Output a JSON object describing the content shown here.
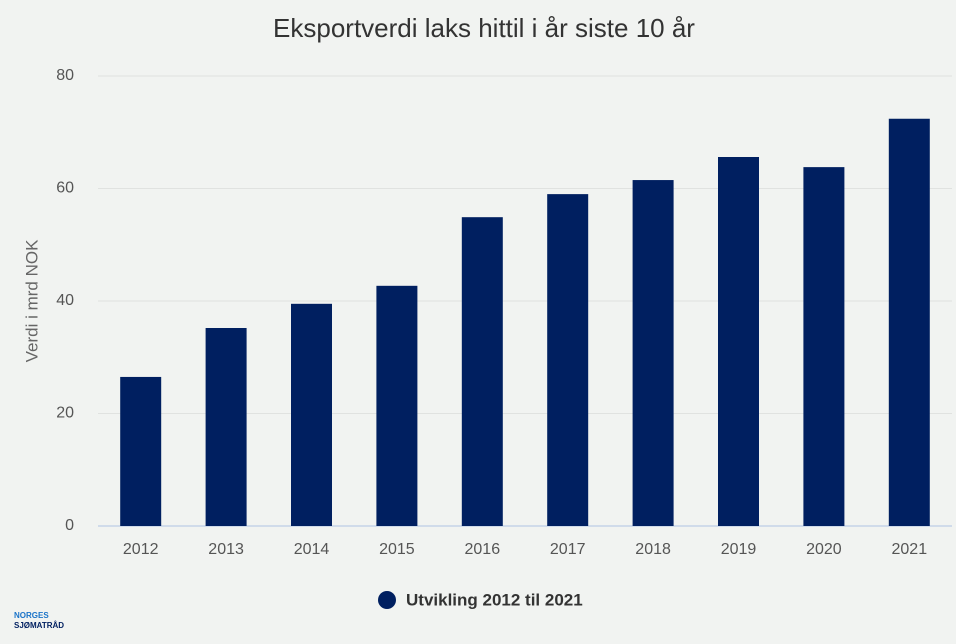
{
  "chart_data": {
    "type": "bar",
    "title": "Eksportverdi laks hittil i år siste 10 år",
    "y_label": "Verdi i mrd NOK",
    "categories": [
      "2012",
      "2013",
      "2014",
      "2015",
      "2016",
      "2017",
      "2018",
      "2019",
      "2020",
      "2021"
    ],
    "series": [
      {
        "name": "Utvikling 2012 til 2021",
        "color": "#001f60",
        "values": [
          26.5,
          35.2,
          39.5,
          42.7,
          54.9,
          59.0,
          61.5,
          65.6,
          63.8,
          72.4
        ]
      }
    ],
    "ylim": [
      0,
      80
    ],
    "yticks": [
      0,
      20,
      40,
      60,
      80
    ],
    "grid": true,
    "legend": "bottom"
  },
  "logo": {
    "line1": "NORGES",
    "line2": "SJØMATRÅD"
  }
}
